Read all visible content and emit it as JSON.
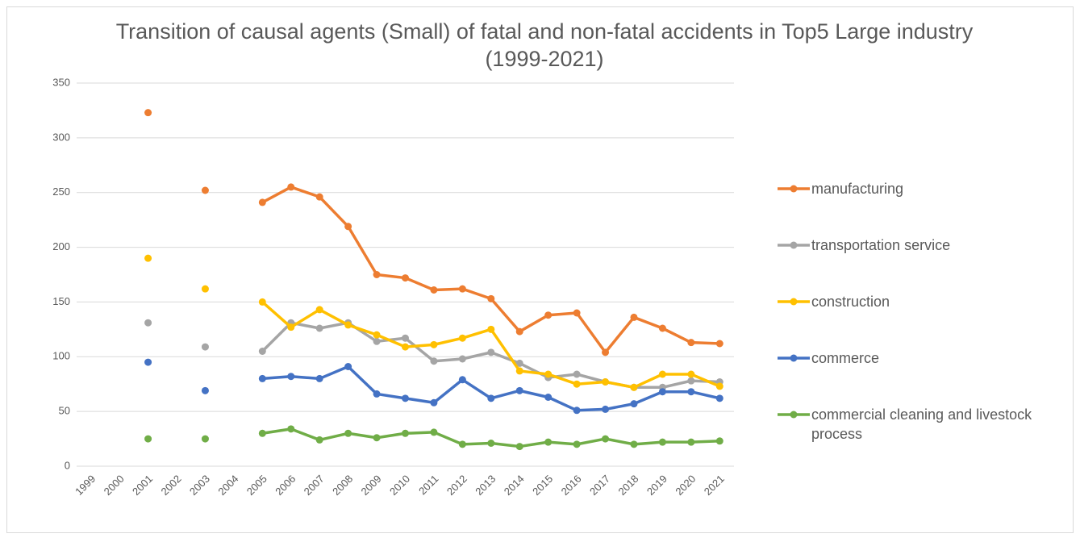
{
  "chart_data": {
    "type": "line",
    "title": "Transition of causal agents (Small) of fatal and non-fatal accidents in Top5 Large industry (1999-2021)",
    "categories": [
      "1999",
      "2000",
      "2001",
      "2002",
      "2003",
      "2004",
      "2005",
      "2006",
      "2007",
      "2008",
      "2009",
      "2010",
      "2011",
      "2012",
      "2013",
      "2014",
      "2015",
      "2016",
      "2017",
      "2018",
      "2019",
      "2020",
      "2021"
    ],
    "series": [
      {
        "name": "manufacturing",
        "color": "#ed7d31",
        "values": [
          null,
          null,
          323,
          null,
          252,
          null,
          241,
          255,
          246,
          219,
          175,
          172,
          161,
          162,
          153,
          123,
          138,
          140,
          104,
          136,
          126,
          113,
          112
        ]
      },
      {
        "name": "transportation service",
        "color": "#a5a5a5",
        "values": [
          null,
          null,
          131,
          null,
          109,
          null,
          105,
          131,
          126,
          131,
          114,
          117,
          96,
          98,
          104,
          94,
          81,
          84,
          77,
          72,
          72,
          78,
          77
        ]
      },
      {
        "name": "construction",
        "color": "#ffc000",
        "values": [
          null,
          null,
          190,
          null,
          162,
          null,
          150,
          127,
          143,
          129,
          120,
          109,
          111,
          117,
          125,
          87,
          84,
          75,
          77,
          72,
          84,
          84,
          73
        ]
      },
      {
        "name": "commerce",
        "color": "#4472c4",
        "values": [
          null,
          null,
          95,
          null,
          69,
          null,
          80,
          82,
          80,
          91,
          66,
          62,
          58,
          79,
          62,
          69,
          63,
          51,
          52,
          57,
          68,
          68,
          62
        ]
      },
      {
        "name": "commercial cleaning and livestock process",
        "color": "#70ad47",
        "values": [
          null,
          null,
          25,
          null,
          25,
          null,
          30,
          34,
          24,
          30,
          26,
          30,
          31,
          20,
          21,
          18,
          22,
          20,
          25,
          20,
          22,
          22,
          23
        ]
      }
    ],
    "ylim": [
      0,
      350
    ],
    "yticks": [
      0,
      50,
      100,
      150,
      200,
      250,
      300,
      350
    ],
    "grid": true,
    "legend": "right"
  }
}
